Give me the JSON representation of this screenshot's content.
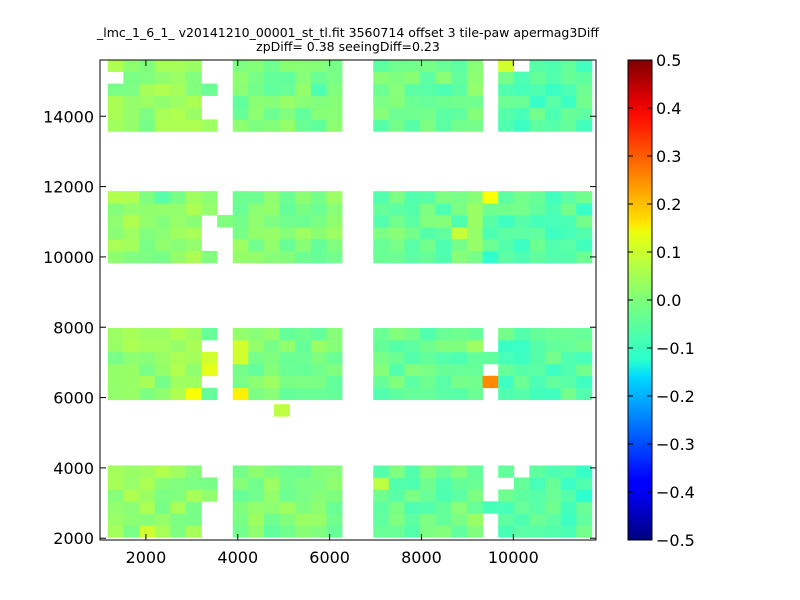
{
  "chart_data": {
    "type": "heatmap",
    "title": "_lmc_1_6_1_ v20141210_00001_st_tl.fit 3560714 offset 3 tile-paw apermag3Diff",
    "subtitle": "zpDiff= 0.38 seeingDiff=0.23",
    "xlabel": "",
    "ylabel": "",
    "xlim": [
      1000,
      11800
    ],
    "ylim": [
      1950,
      15600
    ],
    "x_ticks": [
      "2000",
      "4000",
      "6000",
      "8000",
      "10000"
    ],
    "y_ticks": [
      "2000",
      "4000",
      "6000",
      "8000",
      "10000",
      "12000",
      "14000"
    ],
    "colorbar": {
      "min": -0.5,
      "max": 0.5,
      "ticks": [
        "0.5",
        "0.4",
        "0.3",
        "0.2",
        "0.1",
        "0.0",
        "−0.1",
        "−0.2",
        "−0.3",
        "−0.4",
        "−0.5"
      ]
    },
    "grid": false,
    "cell_size": [
      340,
      340
    ],
    "columns_x": [
      1340,
      1680,
      2020,
      2360,
      2700,
      3040,
      3380,
      3720,
      4060,
      4400,
      4740,
      5080,
      5420,
      5760,
      6100,
      6440,
      6780,
      7120,
      7460,
      7800,
      8140,
      8480,
      8820,
      9160,
      9500,
      9840,
      10180,
      10520,
      10860,
      11200,
      11540
    ],
    "rows_y": [
      2200,
      2540,
      2880,
      3220,
      3560,
      3900,
      6110,
      6450,
      6790,
      7130,
      7470,
      7810,
      10000,
      10340,
      10680,
      11020,
      11360,
      11700,
      13740,
      14080,
      14420,
      14760,
      15100,
      15440
    ],
    "col_ranges_x": [
      [
        1000,
        3100
      ],
      [
        3600,
        6100
      ],
      [
        6700,
        9100
      ],
      [
        9500,
        11800
      ]
    ],
    "row_ranges_y": [
      [
        1950,
        4050
      ],
      [
        5800,
        7950
      ],
      [
        9700,
        11800
      ],
      [
        13500,
        15600
      ]
    ],
    "mask": [
      [
        1,
        1,
        1,
        1,
        1,
        1,
        0,
        0,
        1,
        1,
        1,
        1,
        1,
        1,
        1,
        0,
        0,
        1,
        1,
        1,
        1,
        1,
        1,
        1,
        0,
        1,
        1,
        1,
        1,
        1,
        1
      ],
      [
        1,
        1,
        1,
        1,
        1,
        1,
        0,
        0,
        1,
        1,
        1,
        1,
        1,
        1,
        1,
        0,
        0,
        1,
        1,
        1,
        1,
        1,
        1,
        1,
        0,
        1,
        1,
        1,
        1,
        1,
        1
      ],
      [
        1,
        1,
        1,
        1,
        1,
        1,
        0,
        0,
        1,
        1,
        1,
        1,
        1,
        1,
        1,
        0,
        0,
        1,
        1,
        1,
        1,
        1,
        1,
        1,
        1,
        1,
        1,
        1,
        1,
        1,
        1
      ],
      [
        1,
        1,
        1,
        1,
        1,
        1,
        1,
        0,
        1,
        1,
        1,
        1,
        1,
        1,
        1,
        0,
        0,
        1,
        1,
        1,
        1,
        1,
        1,
        1,
        0,
        1,
        1,
        1,
        1,
        1,
        1
      ],
      [
        1,
        1,
        1,
        1,
        1,
        1,
        1,
        0,
        1,
        1,
        1,
        1,
        1,
        1,
        1,
        0,
        0,
        1,
        1,
        1,
        1,
        1,
        1,
        1,
        0,
        0,
        1,
        1,
        1,
        1,
        1
      ],
      [
        1,
        1,
        1,
        1,
        1,
        1,
        0,
        0,
        1,
        1,
        1,
        1,
        1,
        1,
        1,
        0,
        0,
        1,
        1,
        1,
        1,
        1,
        1,
        1,
        0,
        1,
        0,
        1,
        1,
        1,
        1
      ],
      [
        1,
        1,
        1,
        1,
        1,
        1,
        1,
        0,
        1,
        1,
        1,
        1,
        1,
        1,
        1,
        0,
        0,
        1,
        1,
        1,
        1,
        1,
        1,
        1,
        0,
        1,
        1,
        1,
        1,
        1,
        1
      ],
      [
        1,
        1,
        1,
        1,
        1,
        1,
        0,
        0,
        1,
        1,
        1,
        1,
        1,
        1,
        1,
        0,
        0,
        1,
        1,
        1,
        1,
        1,
        1,
        1,
        1,
        1,
        1,
        1,
        1,
        1,
        1
      ],
      [
        1,
        1,
        1,
        1,
        1,
        1,
        1,
        0,
        1,
        1,
        1,
        1,
        1,
        1,
        1,
        0,
        0,
        1,
        1,
        1,
        1,
        1,
        1,
        1,
        0,
        1,
        1,
        1,
        1,
        1,
        1
      ],
      [
        1,
        1,
        1,
        1,
        1,
        1,
        1,
        0,
        1,
        1,
        1,
        1,
        1,
        1,
        1,
        0,
        0,
        1,
        1,
        1,
        1,
        1,
        1,
        1,
        1,
        1,
        1,
        1,
        1,
        1,
        1
      ],
      [
        1,
        1,
        1,
        1,
        1,
        1,
        0,
        0,
        1,
        1,
        1,
        1,
        1,
        1,
        1,
        0,
        0,
        1,
        1,
        1,
        1,
        1,
        1,
        1,
        0,
        1,
        1,
        1,
        1,
        1,
        1
      ],
      [
        1,
        1,
        1,
        1,
        1,
        1,
        1,
        0,
        1,
        1,
        1,
        1,
        1,
        1,
        1,
        0,
        0,
        1,
        1,
        1,
        1,
        1,
        1,
        1,
        0,
        1,
        1,
        1,
        1,
        1,
        1
      ],
      [
        1,
        1,
        1,
        1,
        1,
        1,
        1,
        0,
        1,
        1,
        1,
        1,
        1,
        1,
        1,
        0,
        0,
        1,
        1,
        1,
        1,
        1,
        1,
        1,
        1,
        1,
        1,
        1,
        1,
        1,
        1
      ],
      [
        1,
        1,
        1,
        1,
        1,
        1,
        0,
        0,
        1,
        1,
        1,
        1,
        1,
        1,
        1,
        0,
        0,
        1,
        1,
        1,
        1,
        1,
        1,
        1,
        1,
        1,
        1,
        1,
        1,
        1,
        1
      ],
      [
        1,
        1,
        1,
        1,
        1,
        1,
        0,
        0,
        1,
        1,
        1,
        1,
        1,
        1,
        1,
        0,
        0,
        1,
        1,
        1,
        1,
        1,
        1,
        1,
        1,
        1,
        1,
        1,
        1,
        1,
        1
      ],
      [
        1,
        1,
        1,
        1,
        1,
        1,
        0,
        1,
        1,
        1,
        1,
        1,
        1,
        1,
        1,
        0,
        0,
        1,
        1,
        1,
        1,
        1,
        1,
        1,
        1,
        1,
        1,
        1,
        1,
        1,
        1
      ],
      [
        1,
        1,
        1,
        1,
        1,
        1,
        1,
        0,
        1,
        1,
        1,
        1,
        1,
        1,
        1,
        0,
        0,
        1,
        1,
        1,
        1,
        1,
        1,
        1,
        1,
        1,
        1,
        1,
        1,
        1,
        1
      ],
      [
        1,
        1,
        1,
        1,
        1,
        1,
        1,
        0,
        1,
        1,
        1,
        1,
        1,
        1,
        1,
        0,
        0,
        1,
        1,
        1,
        1,
        1,
        1,
        1,
        1,
        1,
        1,
        1,
        1,
        1,
        1
      ],
      [
        1,
        1,
        1,
        1,
        1,
        1,
        1,
        0,
        1,
        1,
        1,
        1,
        1,
        1,
        1,
        0,
        0,
        1,
        1,
        1,
        1,
        1,
        1,
        1,
        0,
        1,
        1,
        1,
        1,
        1,
        1
      ],
      [
        1,
        1,
        1,
        1,
        1,
        1,
        0,
        0,
        1,
        1,
        1,
        1,
        1,
        1,
        1,
        0,
        0,
        1,
        1,
        1,
        1,
        1,
        1,
        1,
        0,
        1,
        1,
        1,
        1,
        1,
        1
      ],
      [
        1,
        1,
        1,
        1,
        1,
        1,
        0,
        0,
        1,
        1,
        1,
        1,
        1,
        1,
        1,
        0,
        0,
        1,
        1,
        1,
        1,
        1,
        1,
        1,
        0,
        1,
        1,
        1,
        1,
        1,
        1
      ],
      [
        1,
        1,
        1,
        1,
        1,
        1,
        1,
        0,
        1,
        1,
        1,
        1,
        1,
        1,
        1,
        0,
        0,
        1,
        1,
        1,
        1,
        1,
        1,
        1,
        0,
        1,
        1,
        1,
        1,
        1,
        1
      ],
      [
        0,
        1,
        1,
        1,
        1,
        1,
        0,
        0,
        1,
        1,
        1,
        1,
        1,
        1,
        1,
        0,
        0,
        1,
        1,
        1,
        1,
        1,
        1,
        1,
        0,
        1,
        1,
        1,
        1,
        1,
        1
      ],
      [
        1,
        1,
        1,
        1,
        1,
        1,
        0,
        0,
        1,
        1,
        1,
        1,
        1,
        1,
        1,
        0,
        0,
        1,
        1,
        1,
        1,
        1,
        1,
        1,
        0,
        1,
        0,
        1,
        1,
        1,
        1
      ]
    ],
    "base_values": [
      0.02,
      0.0,
      -0.02,
      -0.04
    ],
    "extra_cells": [
      {
        "x": 4960,
        "y": 5640,
        "value": 0.06
      }
    ],
    "overrides": [
      {
        "row": 0,
        "col": 2,
        "value": 0.08
      },
      {
        "row": 3,
        "col": 30,
        "value": -0.08
      },
      {
        "row": 4,
        "col": 17,
        "value": 0.06
      },
      {
        "row": 6,
        "col": 5,
        "value": 0.12
      },
      {
        "row": 6,
        "col": 8,
        "value": 0.14
      },
      {
        "row": 7,
        "col": 24,
        "value": 0.24
      },
      {
        "row": 8,
        "col": 6,
        "value": 0.1
      },
      {
        "row": 9,
        "col": 6,
        "value": 0.08
      },
      {
        "row": 9,
        "col": 8,
        "value": 0.08
      },
      {
        "row": 10,
        "col": 6,
        "value": 0.07
      },
      {
        "row": 10,
        "col": 8,
        "value": 0.08
      },
      {
        "row": 12,
        "col": 24,
        "value": -0.08
      },
      {
        "row": 14,
        "col": 22,
        "value": 0.07
      },
      {
        "row": 17,
        "col": 24,
        "value": 0.12
      },
      {
        "row": 17,
        "col": 3,
        "value": -0.04
      },
      {
        "row": 18,
        "col": 7,
        "value": 0.08
      },
      {
        "row": 21,
        "col": 13,
        "value": -0.05
      },
      {
        "row": 23,
        "col": 25,
        "value": 0.08
      }
    ]
  }
}
